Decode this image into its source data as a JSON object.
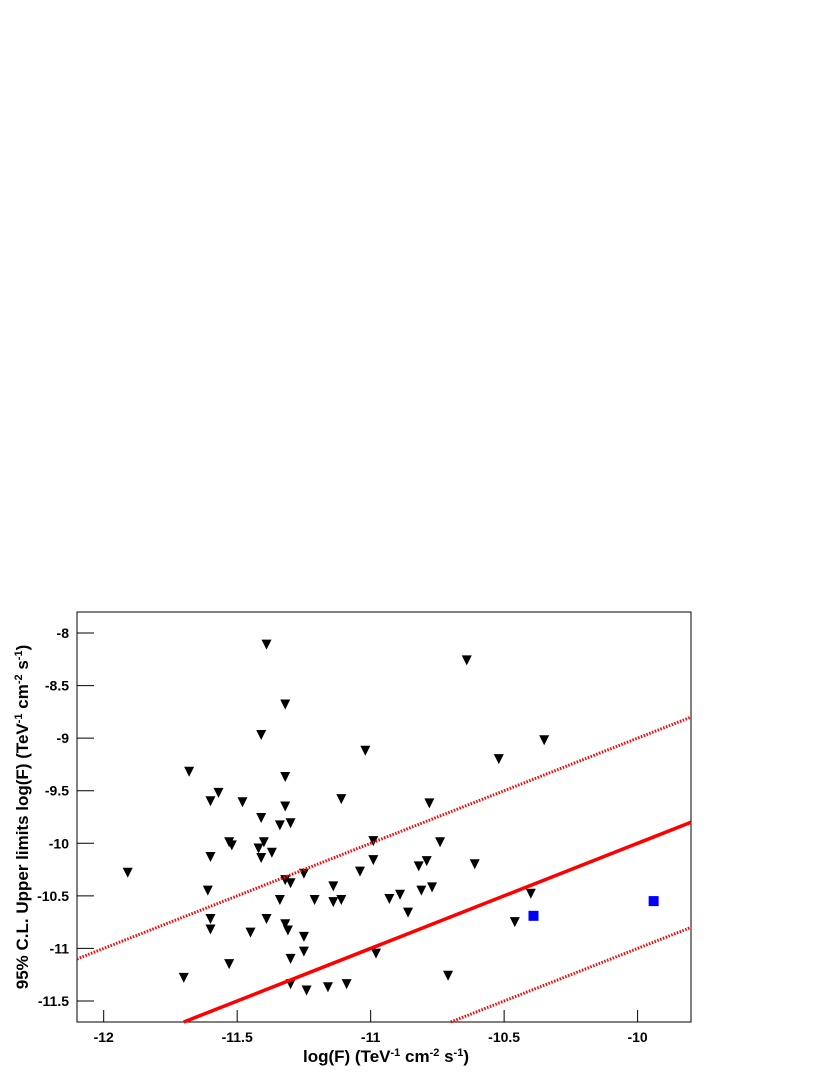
{
  "chart_data": {
    "type": "scatter",
    "x_label_parts": [
      "log(F) (TeV",
      "-1",
      " cm",
      "-2",
      " s",
      "-1",
      ")"
    ],
    "y_label_parts": [
      "95% C.L. Upper limits log(F) (TeV",
      "-1",
      " cm",
      "-2",
      " s",
      "-1",
      ")"
    ],
    "xlim": [
      -12.1,
      -9.8
    ],
    "ylim": [
      -11.7,
      -7.8
    ],
    "xticks": [
      -12,
      -11.5,
      -11,
      -10.5,
      -10
    ],
    "yticks": [
      -8,
      -8.5,
      -9,
      -9.5,
      -10,
      -10.5,
      -11,
      -11.5
    ],
    "series": [
      {
        "type": "scatter",
        "marker": "triangle-down",
        "color": "#000000",
        "x": [
          -11.91,
          -11.68,
          -11.7,
          -11.39,
          -11.32,
          -11.41,
          -11.32,
          -11.57,
          -11.6,
          -11.48,
          -11.41,
          -11.32,
          -11.34,
          -11.3,
          -11.53,
          -11.52,
          -11.4,
          -11.42,
          -11.37,
          -11.41,
          -11.6,
          -11.32,
          -11.3,
          -11.25,
          -11.61,
          -11.6,
          -11.34,
          -11.21,
          -11.14,
          -11.14,
          -11.11,
          -11.6,
          -11.45,
          -11.39,
          -11.32,
          -11.31,
          -11.25,
          -11.53,
          -11.3,
          -11.25,
          -11.3,
          -11.24,
          -11.16,
          -11.09,
          -11.11,
          -11.02,
          -10.99,
          -10.99,
          -11.04,
          -10.98,
          -10.93,
          -10.89,
          -10.86,
          -10.82,
          -10.81,
          -10.77,
          -10.79,
          -10.78,
          -10.74,
          -10.71,
          -10.64,
          -10.52,
          -10.61,
          -10.46,
          -10.4,
          -10.35
        ],
        "values": [
          -10.28,
          -9.32,
          -11.28,
          -8.11,
          -8.68,
          -8.97,
          -9.37,
          -9.52,
          -9.6,
          -9.61,
          -9.76,
          -9.65,
          -9.83,
          -9.81,
          -9.99,
          -10.02,
          -9.99,
          -10.05,
          -10.09,
          -10.14,
          -10.13,
          -10.35,
          -10.38,
          -10.29,
          -10.45,
          -10.72,
          -10.54,
          -10.54,
          -10.41,
          -10.56,
          -10.54,
          -10.82,
          -10.85,
          -10.72,
          -10.77,
          -10.83,
          -10.89,
          -11.15,
          -11.1,
          -11.03,
          -11.34,
          -11.4,
          -11.37,
          -11.34,
          -9.58,
          -9.12,
          -9.98,
          -10.16,
          -10.27,
          -11.05,
          -10.53,
          -10.49,
          -10.66,
          -10.22,
          -10.45,
          -10.42,
          -10.17,
          -9.62,
          -9.99,
          -11.26,
          -8.26,
          -9.2,
          -10.2,
          -10.75,
          -10.48,
          -9.02
        ]
      },
      {
        "type": "scatter",
        "marker": "square",
        "color": "#0000ff",
        "x": [
          -10.39,
          -9.94
        ],
        "values": [
          -10.69,
          -10.55
        ]
      },
      {
        "type": "line",
        "dash": "solid",
        "color": "#ff0000",
        "x": [
          -11.7,
          -9.8
        ],
        "values": [
          -11.7,
          -9.8
        ]
      },
      {
        "type": "line",
        "dash": "dotted",
        "color": "#ff0000",
        "x": [
          -12.1,
          -9.8
        ],
        "values": [
          -11.1,
          -8.8
        ]
      },
      {
        "type": "line",
        "dash": "dotted",
        "color": "#ff0000",
        "x": [
          -10.7,
          -9.8
        ],
        "values": [
          -11.7,
          -10.8
        ]
      }
    ]
  }
}
